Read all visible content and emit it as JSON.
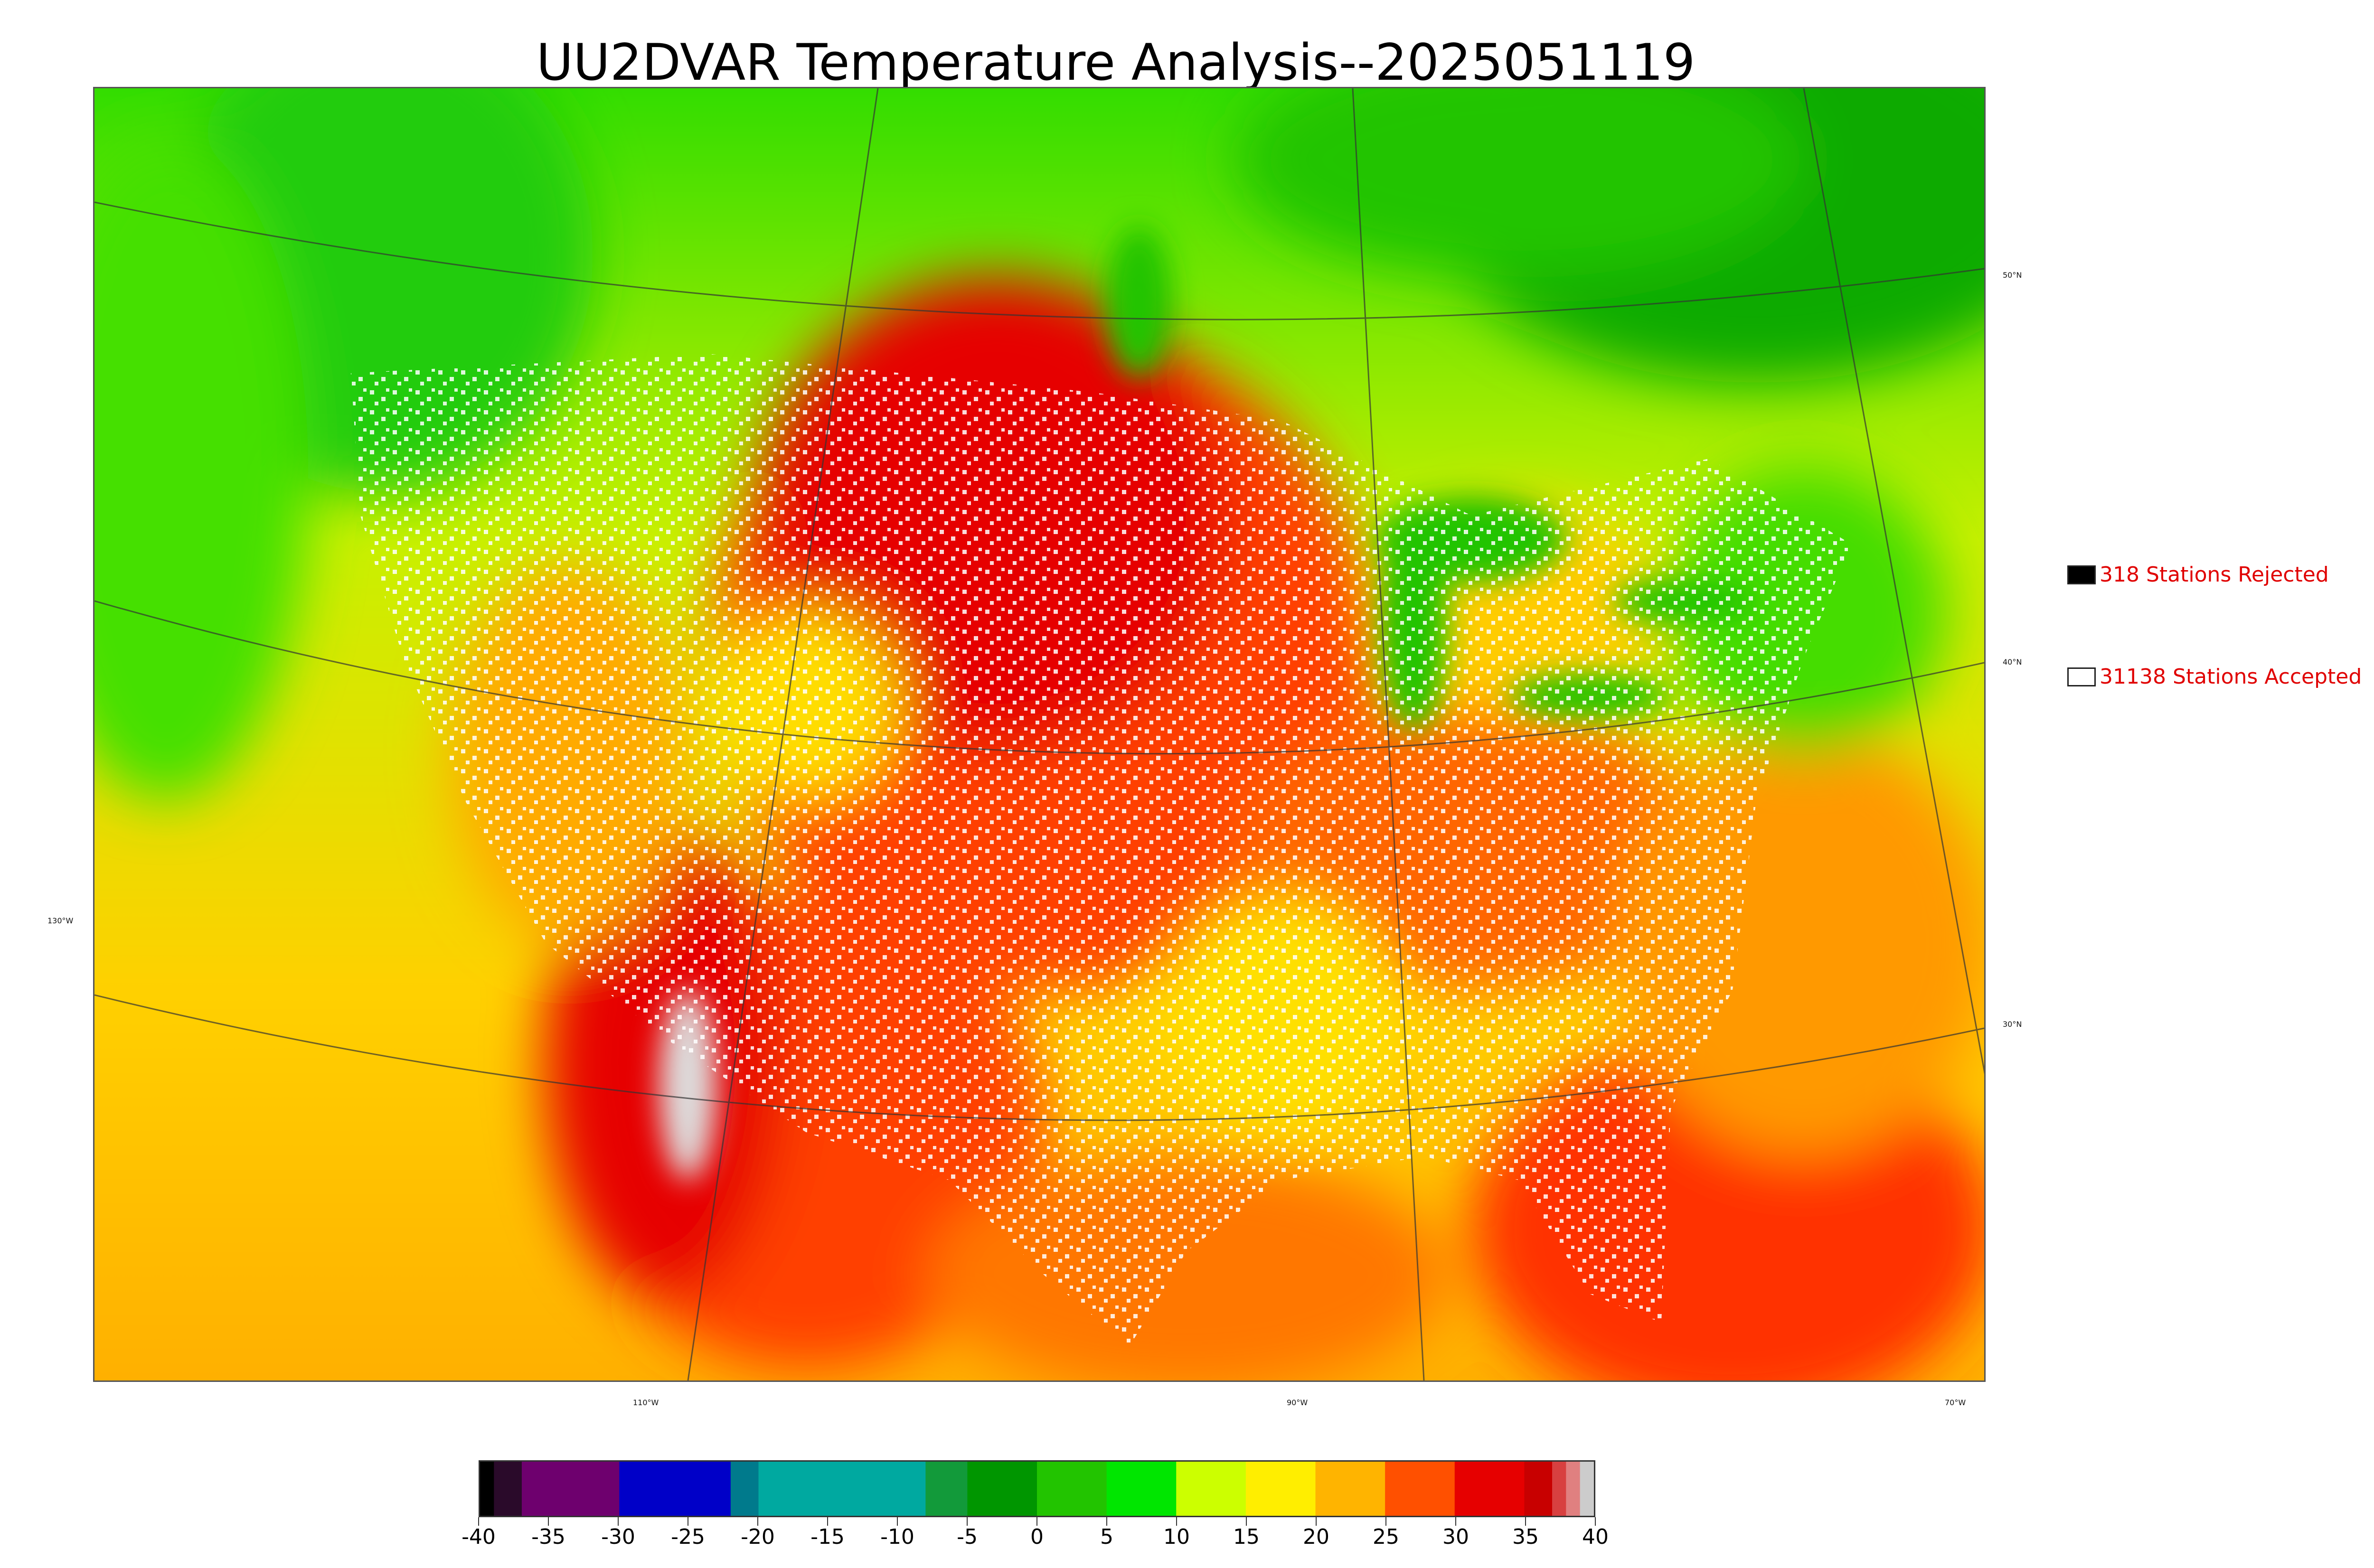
{
  "title": "UU2DVAR Temperature Analysis--2025051119",
  "map": {
    "lat_labels": [
      "50°N",
      "40°N",
      "30°N"
    ],
    "lon_labels": [
      "130°W",
      "110°W",
      "90°W",
      "70°W"
    ]
  },
  "legend": {
    "rejected": {
      "label": "318 Stations Rejected",
      "color": "#000000"
    },
    "accepted": {
      "label": "31138 Stations Accepted",
      "color": "#ffffff"
    }
  },
  "colorbar": {
    "min": -40,
    "max": 40,
    "tick_labels": [
      "-40",
      "-35",
      "-30",
      "-25",
      "-20",
      "-15",
      "-10",
      "-5",
      "0",
      "5",
      "10",
      "15",
      "20",
      "25",
      "30",
      "35",
      "40"
    ],
    "colors": [
      {
        "from": -40,
        "to": -39,
        "color": "#000000"
      },
      {
        "from": -39,
        "to": -37,
        "color": "#2a0a2a"
      },
      {
        "from": -37,
        "to": -30,
        "color": "#6e006e"
      },
      {
        "from": -30,
        "to": -22,
        "color": "#0000c8"
      },
      {
        "from": -22,
        "to": -20,
        "color": "#007a8c"
      },
      {
        "from": -20,
        "to": -8,
        "color": "#00a9a0"
      },
      {
        "from": -8,
        "to": -5,
        "color": "#129a3a"
      },
      {
        "from": -5,
        "to": 0,
        "color": "#009600"
      },
      {
        "from": 0,
        "to": 5,
        "color": "#22c400"
      },
      {
        "from": 5,
        "to": 10,
        "color": "#00e600"
      },
      {
        "from": 10,
        "to": 15,
        "color": "#ccff00"
      },
      {
        "from": 15,
        "to": 20,
        "color": "#ffee00"
      },
      {
        "from": 20,
        "to": 25,
        "color": "#ffb400"
      },
      {
        "from": 25,
        "to": 30,
        "color": "#ff5000"
      },
      {
        "from": 30,
        "to": 35,
        "color": "#e60000"
      },
      {
        "from": 35,
        "to": 37,
        "color": "#c80000"
      },
      {
        "from": 37,
        "to": 38,
        "color": "#d84040"
      },
      {
        "from": 38,
        "to": 39,
        "color": "#e08080"
      },
      {
        "from": 39,
        "to": 40,
        "color": "#cccccc"
      }
    ]
  }
}
